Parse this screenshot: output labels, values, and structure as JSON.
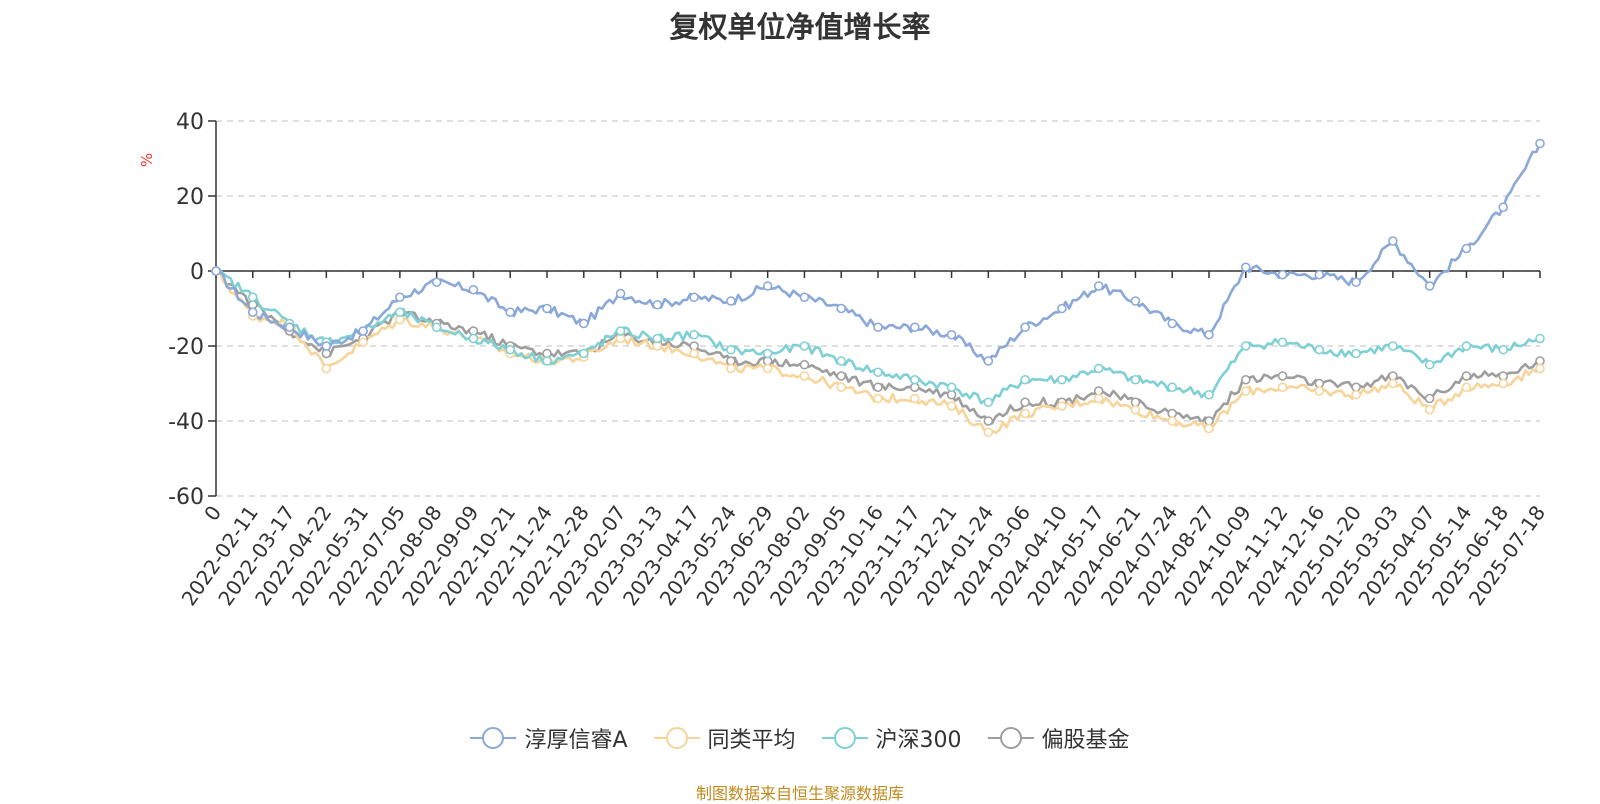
{
  "chart_data": {
    "type": "line",
    "title": "复权单位净值增长率",
    "ylabel": "%",
    "ylim": [
      -60,
      40
    ],
    "yticks": [
      -60,
      -40,
      -20,
      0,
      20,
      40
    ],
    "grid": true,
    "legend_position": "bottom",
    "x_tick_labels": [
      "0",
      "2022-02-11",
      "2022-03-17",
      "2022-04-22",
      "2022-05-31",
      "2022-07-05",
      "2022-08-08",
      "2022-09-09",
      "2022-10-21",
      "2022-11-24",
      "2022-12-28",
      "2023-02-07",
      "2023-03-13",
      "2023-04-17",
      "2023-05-24",
      "2023-06-29",
      "2023-08-02",
      "2023-09-05",
      "2023-10-16",
      "2023-11-17",
      "2023-12-21",
      "2024-01-24",
      "2024-03-06",
      "2024-04-10",
      "2024-05-17",
      "2024-06-21",
      "2024-07-24",
      "2024-08-27",
      "2024-10-09",
      "2024-11-12",
      "2024-12-16",
      "2025-01-20",
      "2025-03-03",
      "2025-04-07",
      "2025-05-14",
      "2025-06-18",
      "2025-07-18"
    ],
    "series": [
      {
        "name": "淳厚信睿A",
        "color": "#8aa8d8",
        "values": [
          0,
          -11,
          -15,
          -20,
          -16,
          -7,
          -3,
          -5,
          -11,
          -10,
          -14,
          -6,
          -9,
          -7,
          -8,
          -4,
          -7,
          -10,
          -15,
          -15,
          -17,
          -24,
          -15,
          -10,
          -4,
          -8,
          -14,
          -17,
          1,
          -1,
          -1,
          -3,
          8,
          -4,
          6,
          17,
          34
        ]
      },
      {
        "name": "同类平均",
        "color": "#f7d49a",
        "values": [
          0,
          -12,
          -14,
          -26,
          -19,
          -13,
          -15,
          -18,
          -22,
          -24,
          -23,
          -18,
          -20,
          -22,
          -26,
          -26,
          -28,
          -31,
          -34,
          -34,
          -36,
          -43,
          -38,
          -36,
          -34,
          -37,
          -40,
          -42,
          -32,
          -31,
          -32,
          -33,
          -30,
          -37,
          -31,
          -30,
          -26
        ]
      },
      {
        "name": "沪深300",
        "color": "#7fd0d4",
        "values": [
          0,
          -7,
          -14,
          -19,
          -16,
          -11,
          -15,
          -18,
          -21,
          -24,
          -22,
          -16,
          -18,
          -17,
          -21,
          -22,
          -20,
          -24,
          -27,
          -29,
          -31,
          -35,
          -29,
          -29,
          -26,
          -29,
          -31,
          -33,
          -20,
          -19,
          -21,
          -22,
          -20,
          -25,
          -20,
          -21,
          -18
        ]
      },
      {
        "name": "偏股基金",
        "color": "#9e9e9e",
        "values": [
          0,
          -9,
          -16,
          -22,
          -18,
          -11,
          -14,
          -16,
          -20,
          -22,
          -22,
          -17,
          -19,
          -20,
          -24,
          -24,
          -25,
          -28,
          -31,
          -31,
          -33,
          -40,
          -35,
          -35,
          -32,
          -35,
          -38,
          -40,
          -29,
          -28,
          -30,
          -31,
          -28,
          -34,
          -28,
          -28,
          -24
        ]
      }
    ],
    "source_note": "制图数据来自恒生聚源数据库"
  }
}
